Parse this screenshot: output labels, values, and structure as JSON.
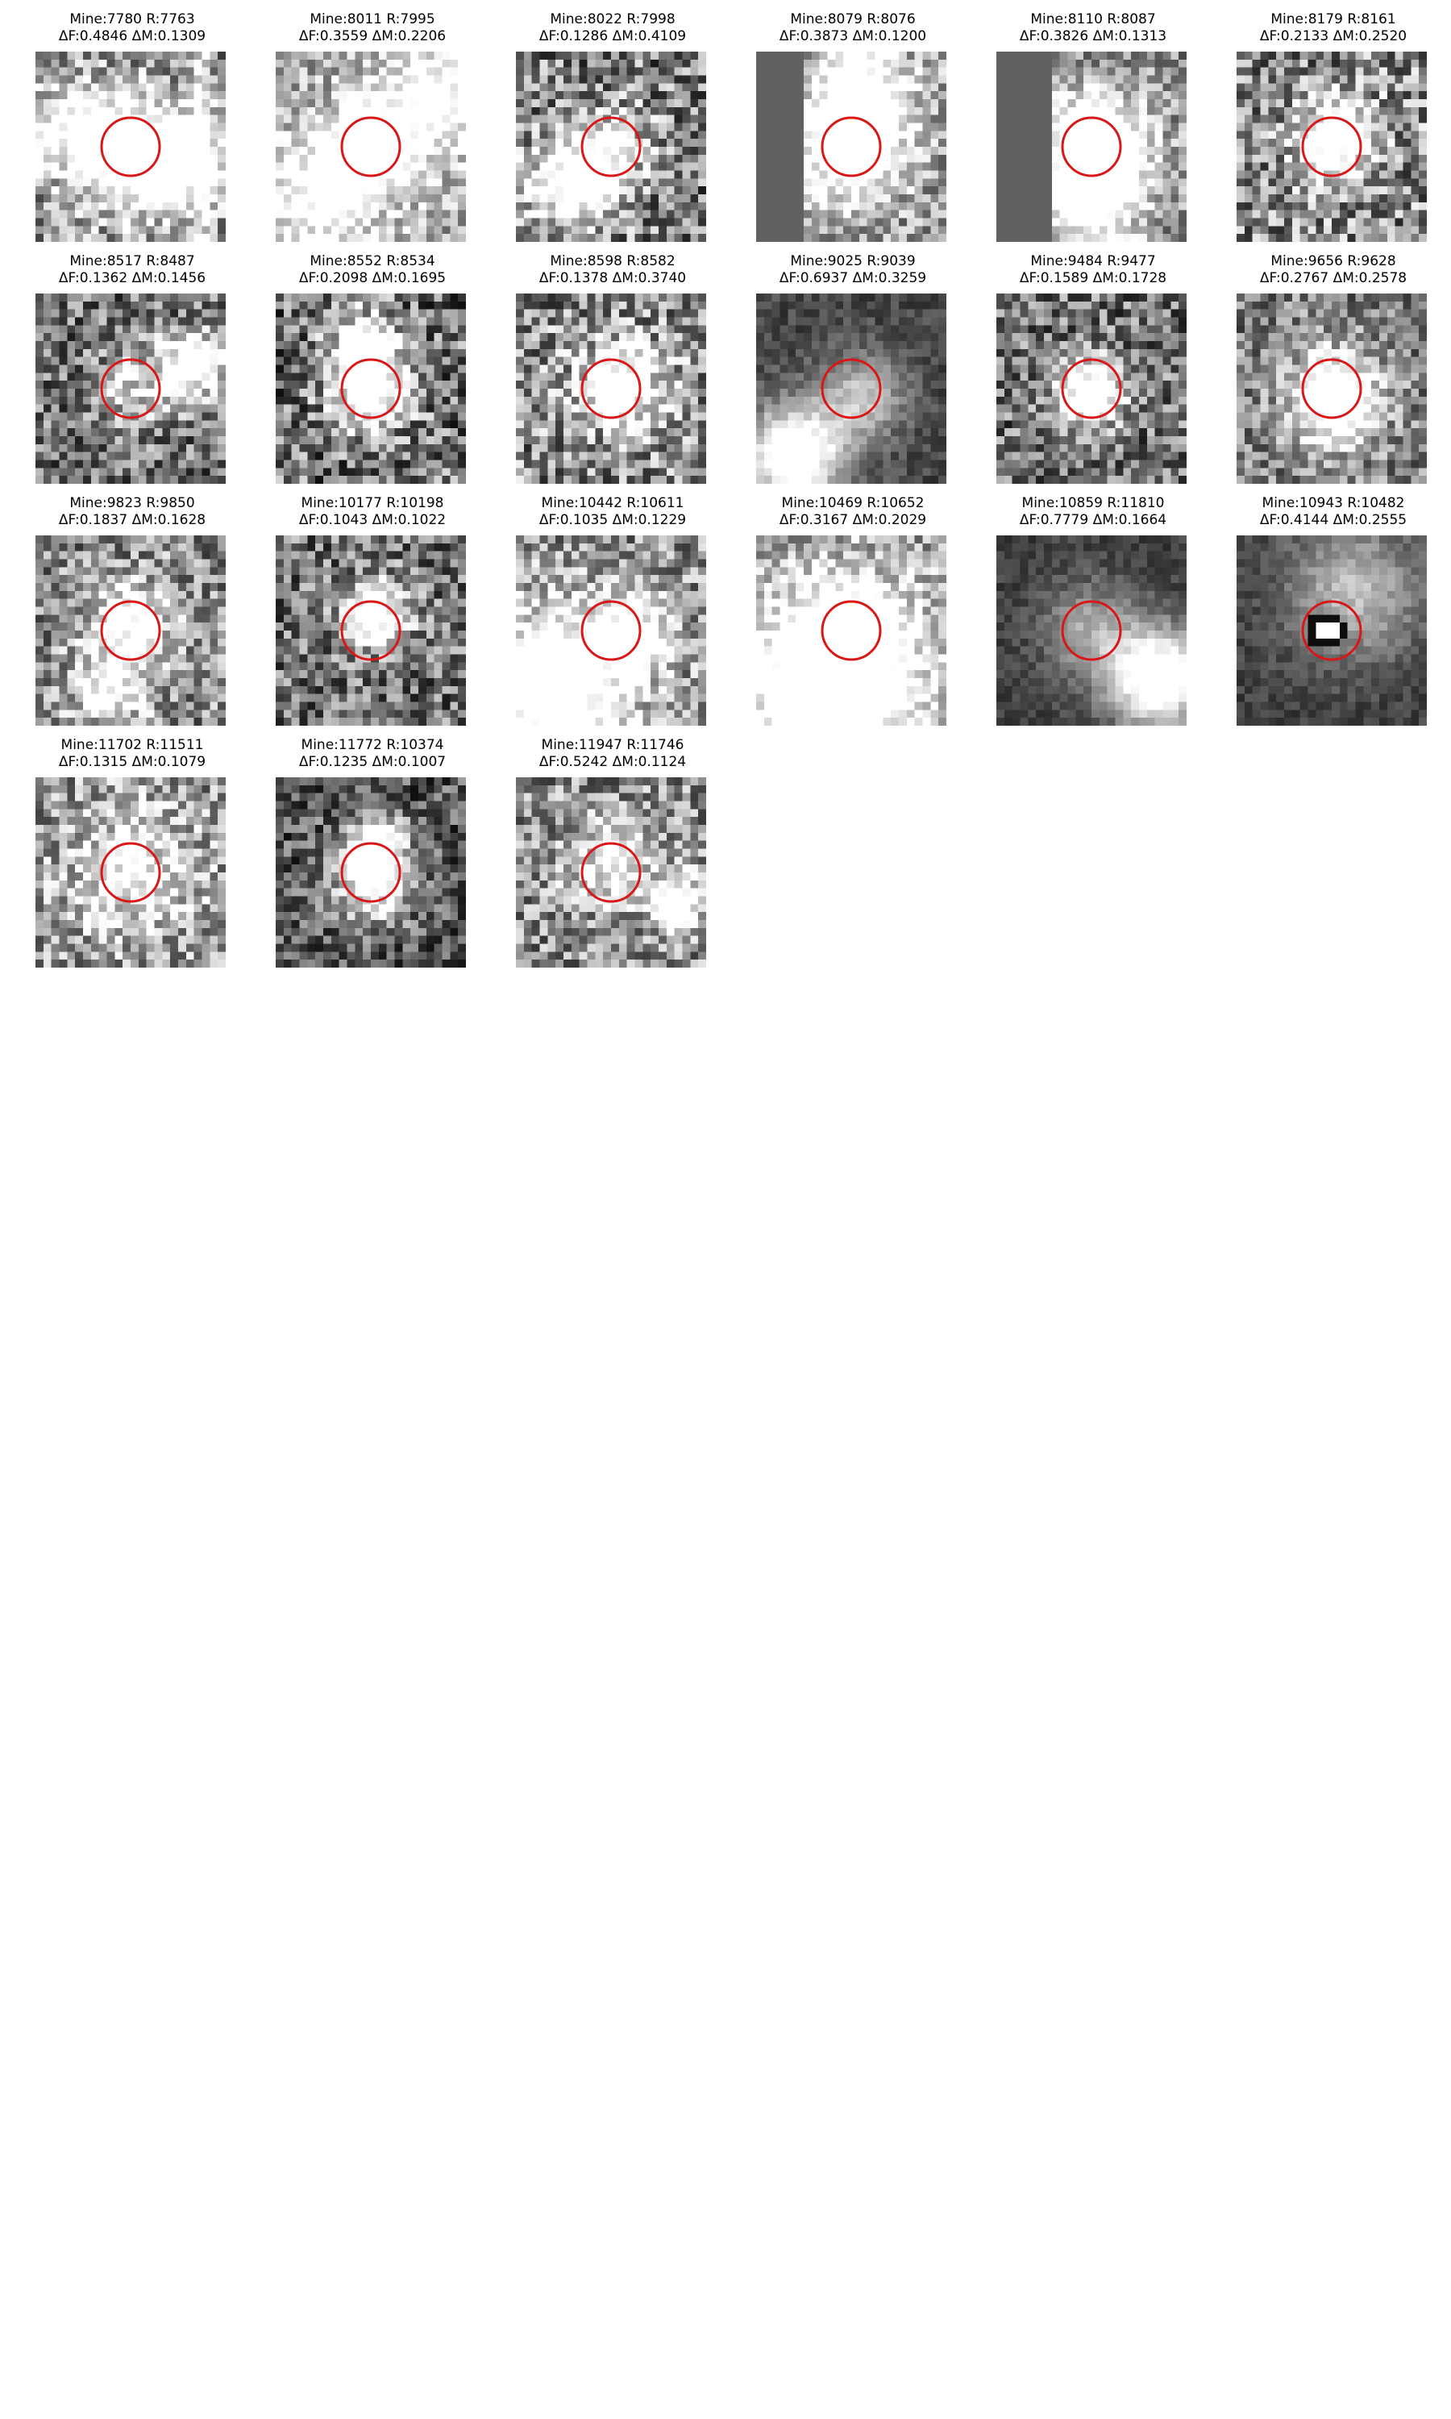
{
  "marker_color": "#d81818",
  "cells": [
    {
      "ids": "Mine:7780 R:7763",
      "deltas": "ΔF:0.4846 ΔM:0.1309",
      "bright_spots": [
        [
          0.5,
          0.55,
          0.9,
          0.2
        ],
        [
          0.78,
          0.55,
          0.7,
          0.16
        ],
        [
          0.18,
          0.4,
          0.5,
          0.18
        ]
      ],
      "bg": 0.55,
      "contrast": 0.35,
      "band": 0.82,
      "seed": 11
    },
    {
      "ids": "Mine:8011 R:7995",
      "deltas": "ΔF:0.3559 ΔM:0.2206",
      "bright_spots": [
        [
          0.5,
          0.5,
          0.9,
          0.14
        ],
        [
          0.25,
          0.75,
          0.6,
          0.22
        ],
        [
          0.85,
          0.25,
          0.6,
          0.22
        ]
      ],
      "bg": 0.65,
      "contrast": 0.3,
      "band": null,
      "seed": 23
    },
    {
      "ids": "Mine:8022 R:7998",
      "deltas": "ΔF:0.1286 ΔM:0.4109",
      "bright_spots": [
        [
          0.3,
          0.7,
          0.9,
          0.16
        ],
        [
          0.5,
          0.5,
          0.5,
          0.14
        ]
      ],
      "bg": 0.5,
      "contrast": 0.4,
      "band": null,
      "seed": 37
    },
    {
      "ids": "Mine:8079 R:8076",
      "deltas": "ΔF:0.3873 ΔM:0.1200",
      "bright_spots": [
        [
          0.5,
          0.5,
          0.9,
          0.18
        ],
        [
          0.55,
          0.2,
          0.6,
          0.18
        ]
      ],
      "bg": 0.6,
      "contrast": 0.3,
      "band": -0.25,
      "seed": 41
    },
    {
      "ids": "Mine:8110 R:8087",
      "deltas": "ΔF:0.3826 ΔM:0.1313",
      "bright_spots": [
        [
          0.52,
          0.5,
          0.9,
          0.2
        ],
        [
          0.5,
          0.8,
          0.6,
          0.18
        ]
      ],
      "bg": 0.55,
      "contrast": 0.3,
      "band": -0.28,
      "seed": 53
    },
    {
      "ids": "Mine:8179 R:8161",
      "deltas": "ΔF:0.2133 ΔM:0.2520",
      "bright_spots": [
        [
          0.52,
          0.48,
          0.9,
          0.14
        ]
      ],
      "bg": 0.55,
      "contrast": 0.4,
      "band": null,
      "seed": 67
    },
    {
      "ids": "Mine:8517 R:8487",
      "deltas": "ΔF:0.1362 ΔM:0.1456",
      "bright_spots": [
        [
          0.82,
          0.38,
          0.9,
          0.12
        ],
        [
          0.5,
          0.5,
          0.4,
          0.14
        ]
      ],
      "bg": 0.45,
      "contrast": 0.35,
      "band": null,
      "seed": 71
    },
    {
      "ids": "Mine:8552 R:8534",
      "deltas": "ΔF:0.2098 ΔM:0.1695",
      "bright_spots": [
        [
          0.5,
          0.5,
          1.0,
          0.14
        ],
        [
          0.45,
          0.25,
          0.6,
          0.12
        ]
      ],
      "bg": 0.45,
      "contrast": 0.4,
      "band": null,
      "seed": 83
    },
    {
      "ids": "Mine:8598 R:8582",
      "deltas": "ΔF:0.1378 ΔM:0.3740",
      "bright_spots": [
        [
          0.55,
          0.48,
          0.9,
          0.14
        ]
      ],
      "bg": 0.55,
      "contrast": 0.4,
      "band": null,
      "seed": 97
    },
    {
      "ids": "Mine:9025 R:9039",
      "deltas": "ΔF:0.6937 ΔM:0.3259",
      "bright_spots": [
        [
          0.2,
          0.85,
          1.0,
          0.18
        ],
        [
          0.55,
          0.55,
          0.5,
          0.16
        ]
      ],
      "bg": 0.28,
      "contrast": 0.12,
      "band": null,
      "seed": 101
    },
    {
      "ids": "Mine:9484 R:9477",
      "deltas": "ΔF:0.1589 ΔM:0.1728",
      "bright_spots": [
        [
          0.5,
          0.52,
          1.0,
          0.12
        ]
      ],
      "bg": 0.45,
      "contrast": 0.35,
      "band": null,
      "seed": 113
    },
    {
      "ids": "Mine:9656 R:9628",
      "deltas": "ΔF:0.2767 ΔM:0.2578",
      "bright_spots": [
        [
          0.52,
          0.55,
          1.0,
          0.16
        ]
      ],
      "bg": 0.5,
      "contrast": 0.3,
      "band": null,
      "seed": 127
    },
    {
      "ids": "Mine:9823 R:9850",
      "deltas": "ΔF:0.1837 ΔM:0.1628",
      "bright_spots": [
        [
          0.5,
          0.45,
          0.7,
          0.14
        ],
        [
          0.4,
          0.8,
          0.6,
          0.14
        ]
      ],
      "bg": 0.55,
      "contrast": 0.35,
      "band": null,
      "seed": 131
    },
    {
      "ids": "Mine:10177 R:10198",
      "deltas": "ΔF:0.1043 ΔM:0.1022",
      "bright_spots": [
        [
          0.52,
          0.42,
          0.9,
          0.12
        ]
      ],
      "bg": 0.45,
      "contrast": 0.35,
      "band": null,
      "seed": 139
    },
    {
      "ids": "Mine:10442 R:10611",
      "deltas": "ΔF:0.1035 ΔM:0.1229",
      "bright_spots": [
        [
          0.2,
          0.8,
          0.9,
          0.3
        ],
        [
          0.6,
          0.5,
          0.6,
          0.14
        ]
      ],
      "bg": 0.55,
      "contrast": 0.35,
      "band": null,
      "seed": 149
    },
    {
      "ids": "Mine:10469 R:10652",
      "deltas": "ΔF:0.3167 ΔM:0.2029",
      "bright_spots": [
        [
          0.4,
          0.75,
          0.9,
          0.35
        ],
        [
          0.5,
          0.5,
          0.5,
          0.14
        ]
      ],
      "bg": 0.6,
      "contrast": 0.3,
      "band": null,
      "seed": 157
    },
    {
      "ids": "Mine:10859 R:11810",
      "deltas": "ΔF:0.7779 ΔM:0.1664",
      "bright_spots": [
        [
          0.85,
          0.75,
          1.0,
          0.18
        ],
        [
          0.5,
          0.5,
          0.4,
          0.18
        ]
      ],
      "bg": 0.25,
      "contrast": 0.1,
      "band": null,
      "seed": 163
    },
    {
      "ids": "Mine:10943 R:10482",
      "deltas": "ΔF:0.4144 ΔM:0.2555",
      "bright_spots": [
        [
          0.62,
          0.3,
          0.5,
          0.25
        ]
      ],
      "bg": 0.25,
      "contrast": 0.1,
      "band": null,
      "star": [
        0.47,
        0.5
      ],
      "seed": 173
    },
    {
      "ids": "Mine:11702 R:11511",
      "deltas": "ΔF:0.1315 ΔM:0.1079",
      "bright_spots": [
        [
          0.5,
          0.5,
          0.5,
          0.2
        ]
      ],
      "bg": 0.6,
      "contrast": 0.35,
      "band": null,
      "seed": 181
    },
    {
      "ids": "Mine:11772 R:10374",
      "deltas": "ΔF:0.1235 ΔM:0.1007",
      "bright_spots": [
        [
          0.52,
          0.38,
          0.9,
          0.12
        ],
        [
          0.5,
          0.6,
          0.6,
          0.14
        ]
      ],
      "bg": 0.35,
      "contrast": 0.3,
      "band": null,
      "seed": 191
    },
    {
      "ids": "Mine:11947 R:11746",
      "deltas": "ΔF:0.5242 ΔM:0.1124",
      "bright_spots": [
        [
          0.85,
          0.65,
          0.8,
          0.1
        ],
        [
          0.5,
          0.45,
          0.5,
          0.16
        ]
      ],
      "bg": 0.55,
      "contrast": 0.35,
      "band": null,
      "seed": 199
    }
  ]
}
